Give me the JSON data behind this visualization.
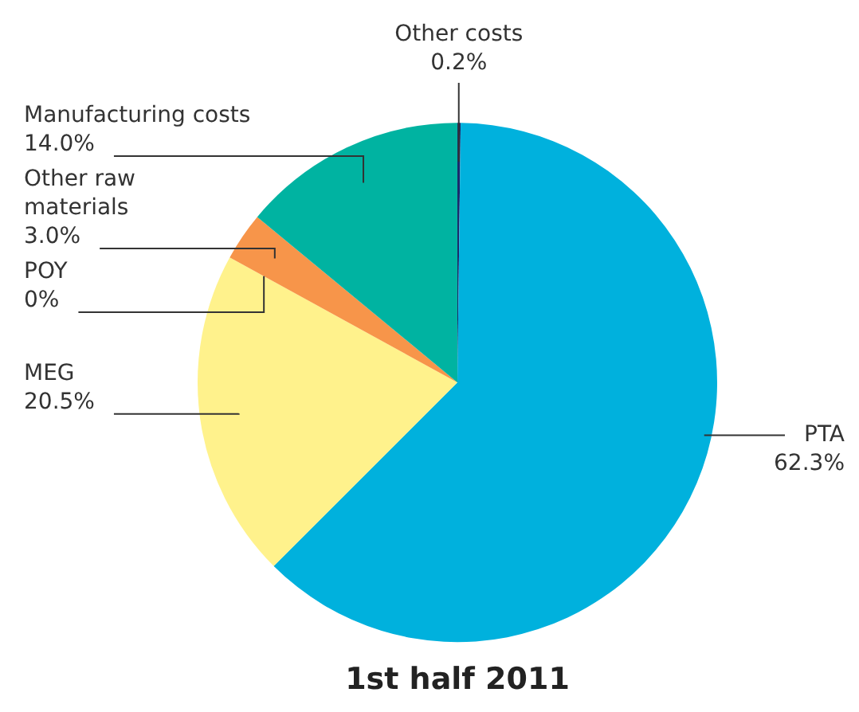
{
  "chart_data": {
    "type": "pie",
    "title": "1st half 2011",
    "categories": [
      "Other costs",
      "PTA",
      "MEG",
      "POY",
      "Other raw materials",
      "Manufacturing costs"
    ],
    "values": [
      0.2,
      62.3,
      20.5,
      0,
      3.0,
      14.0
    ],
    "value_labels": [
      "0.2%",
      "62.3%",
      "20.5%",
      "0%",
      "3.0%",
      "14.0%"
    ],
    "colors": [
      "#1b2a6b",
      "#00b1dd",
      "#fff28c",
      "#f9a24e",
      "#f7954a",
      "#00b3a1"
    ],
    "legend": false
  }
}
